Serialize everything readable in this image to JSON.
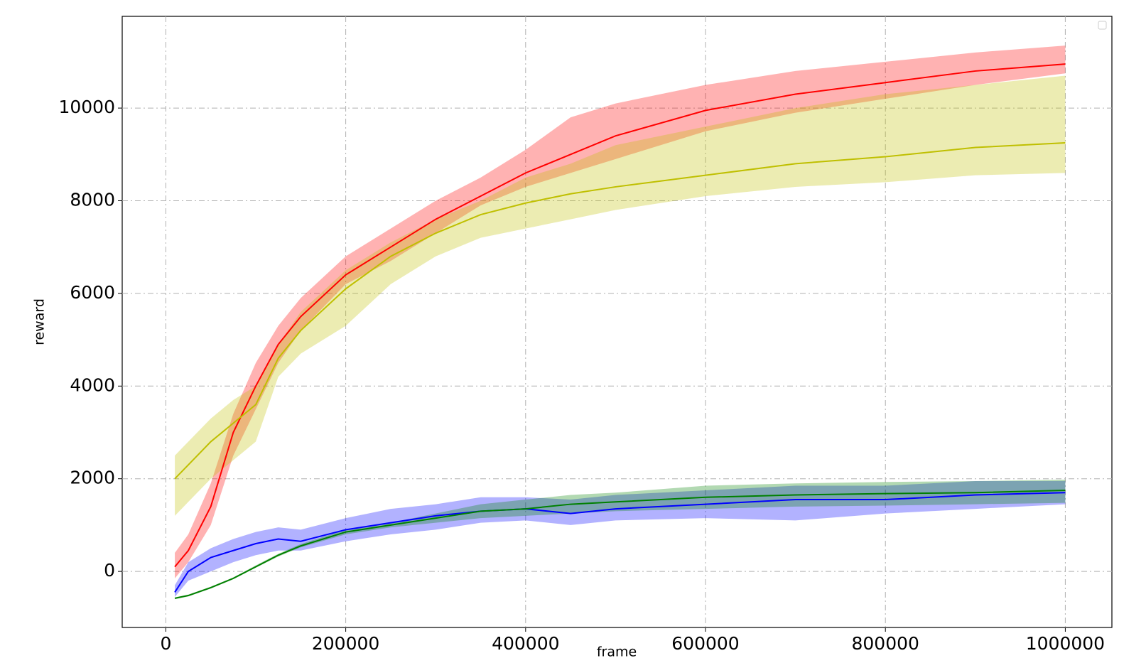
{
  "chart_data": {
    "type": "line",
    "x_label": "frame",
    "y_label": "reward",
    "x": [
      10000,
      25000,
      50000,
      75000,
      100000,
      125000,
      150000,
      200000,
      250000,
      300000,
      350000,
      400000,
      450000,
      500000,
      600000,
      700000,
      800000,
      900000,
      1000000
    ],
    "xlim": [
      -48500,
      1051800
    ],
    "ylim": [
      -1210,
      11980
    ],
    "xticks": [
      0,
      200000,
      400000,
      600000,
      800000,
      1000000
    ],
    "yticks": [
      0,
      2000,
      4000,
      6000,
      8000,
      10000
    ],
    "grid": true,
    "legend": "upper right",
    "series": [
      {
        "color": "#ff0000",
        "values": [
          100,
          450,
          1400,
          3000,
          4000,
          4900,
          5500,
          6400,
          7000,
          7600,
          8100,
          8600,
          9000,
          9400,
          9950,
          10300,
          10550,
          10800,
          10950
        ],
        "lower": [
          -150,
          200,
          1000,
          2500,
          3500,
          4500,
          5200,
          6200,
          6700,
          7300,
          7900,
          8300,
          8600,
          8900,
          9500,
          9900,
          10200,
          10500,
          10750
        ],
        "upper": [
          400,
          800,
          1900,
          3400,
          4500,
          5300,
          5900,
          6800,
          7400,
          8000,
          8500,
          9100,
          9800,
          10100,
          10500,
          10800,
          11000,
          11200,
          11350
        ]
      },
      {
        "color": "#bfbf00",
        "values": [
          2000,
          2300,
          2800,
          3200,
          3600,
          4600,
          5200,
          6100,
          6800,
          7300,
          7700,
          7950,
          8150,
          8300,
          8550,
          8800,
          8950,
          9150,
          9250
        ],
        "lower": [
          1200,
          1500,
          2000,
          2400,
          2800,
          4200,
          4700,
          5300,
          6200,
          6800,
          7200,
          7400,
          7600,
          7800,
          8100,
          8300,
          8400,
          8550,
          8600
        ],
        "upper": [
          2500,
          2800,
          3300,
          3700,
          4000,
          4900,
          5600,
          6500,
          7100,
          7600,
          8000,
          8500,
          8800,
          9200,
          9600,
          10000,
          10300,
          10500,
          10700
        ]
      },
      {
        "color": "#0000ff",
        "values": [
          -450,
          0,
          300,
          450,
          600,
          700,
          650,
          900,
          1050,
          1200,
          1300,
          1350,
          1250,
          1350,
          1450,
          1550,
          1550,
          1650,
          1700
        ],
        "lower": [
          -550,
          -200,
          0,
          200,
          350,
          450,
          450,
          650,
          800,
          900,
          1050,
          1100,
          1000,
          1100,
          1150,
          1100,
          1250,
          1350,
          1450
        ],
        "upper": [
          -300,
          200,
          500,
          700,
          850,
          950,
          900,
          1150,
          1350,
          1450,
          1600,
          1600,
          1550,
          1650,
          1750,
          1850,
          1850,
          1950,
          1950
        ]
      },
      {
        "color": "#008000",
        "values": [
          -580,
          -520,
          -350,
          -150,
          100,
          350,
          550,
          850,
          1000,
          1150,
          1300,
          1350,
          1450,
          1500,
          1600,
          1650,
          1680,
          1700,
          1750
        ],
        "lower": [
          -600,
          -540,
          -370,
          -170,
          80,
          320,
          520,
          800,
          950,
          1050,
          1150,
          1200,
          1250,
          1300,
          1350,
          1400,
          1420,
          1450,
          1480
        ],
        "upper": [
          -560,
          -500,
          -330,
          -130,
          130,
          380,
          590,
          900,
          1050,
          1250,
          1450,
          1550,
          1650,
          1700,
          1850,
          1900,
          1930,
          1950,
          1980
        ]
      }
    ]
  }
}
